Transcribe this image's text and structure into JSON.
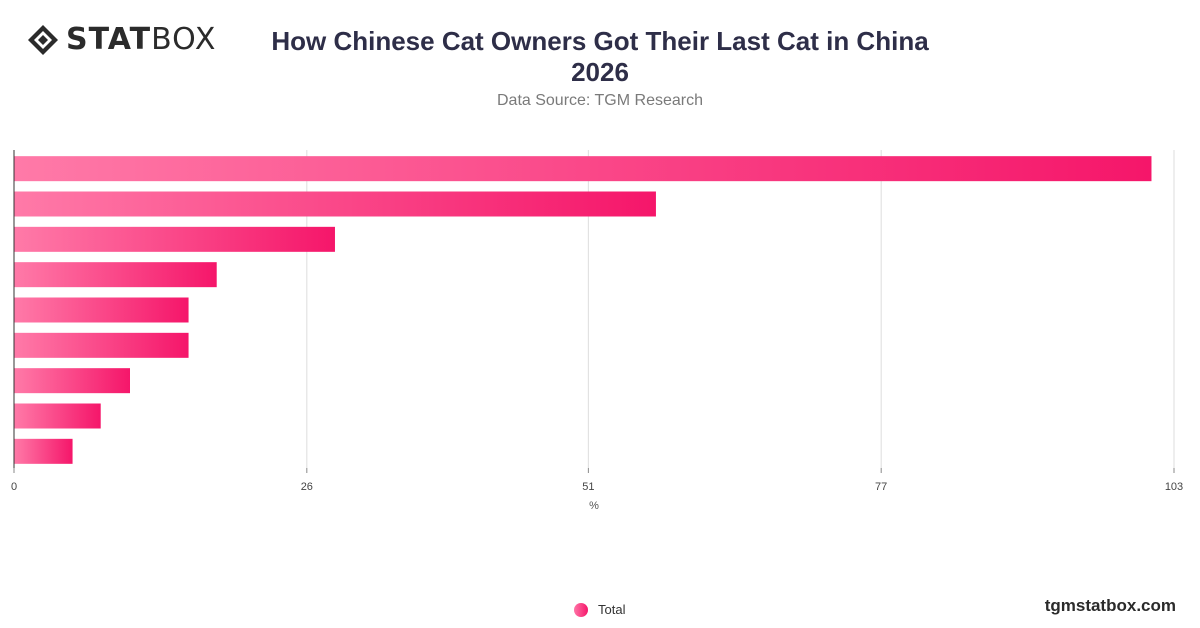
{
  "brand": {
    "logo_bold": "STAT",
    "logo_light": "BOX",
    "site": "tgmstatbox.com"
  },
  "title_line1": "How Chinese Cat Owners Got Their Last Cat in China",
  "title_line2": "2026",
  "subtitle": "Data Source: TGM Research",
  "colors": {
    "bar_start": "#ff7aa8",
    "bar_end": "#f5166a",
    "grid": "#dddddd",
    "axis": "#333333"
  },
  "chart_data": {
    "type": "bar",
    "orientation": "horizontal",
    "categories": [
      "",
      "",
      "",
      "",
      "",
      "",
      "",
      "",
      ""
    ],
    "series": [
      {
        "name": "Total",
        "values": [
          101,
          57,
          28.5,
          18,
          15.5,
          15.5,
          10.3,
          7.7,
          5.2
        ]
      }
    ],
    "xlim": [
      0,
      103
    ],
    "x_ticks": [
      0,
      26,
      51,
      77,
      103
    ],
    "xlabel": "%",
    "ylabel": "",
    "grid": true,
    "legend": "bottom-center"
  }
}
